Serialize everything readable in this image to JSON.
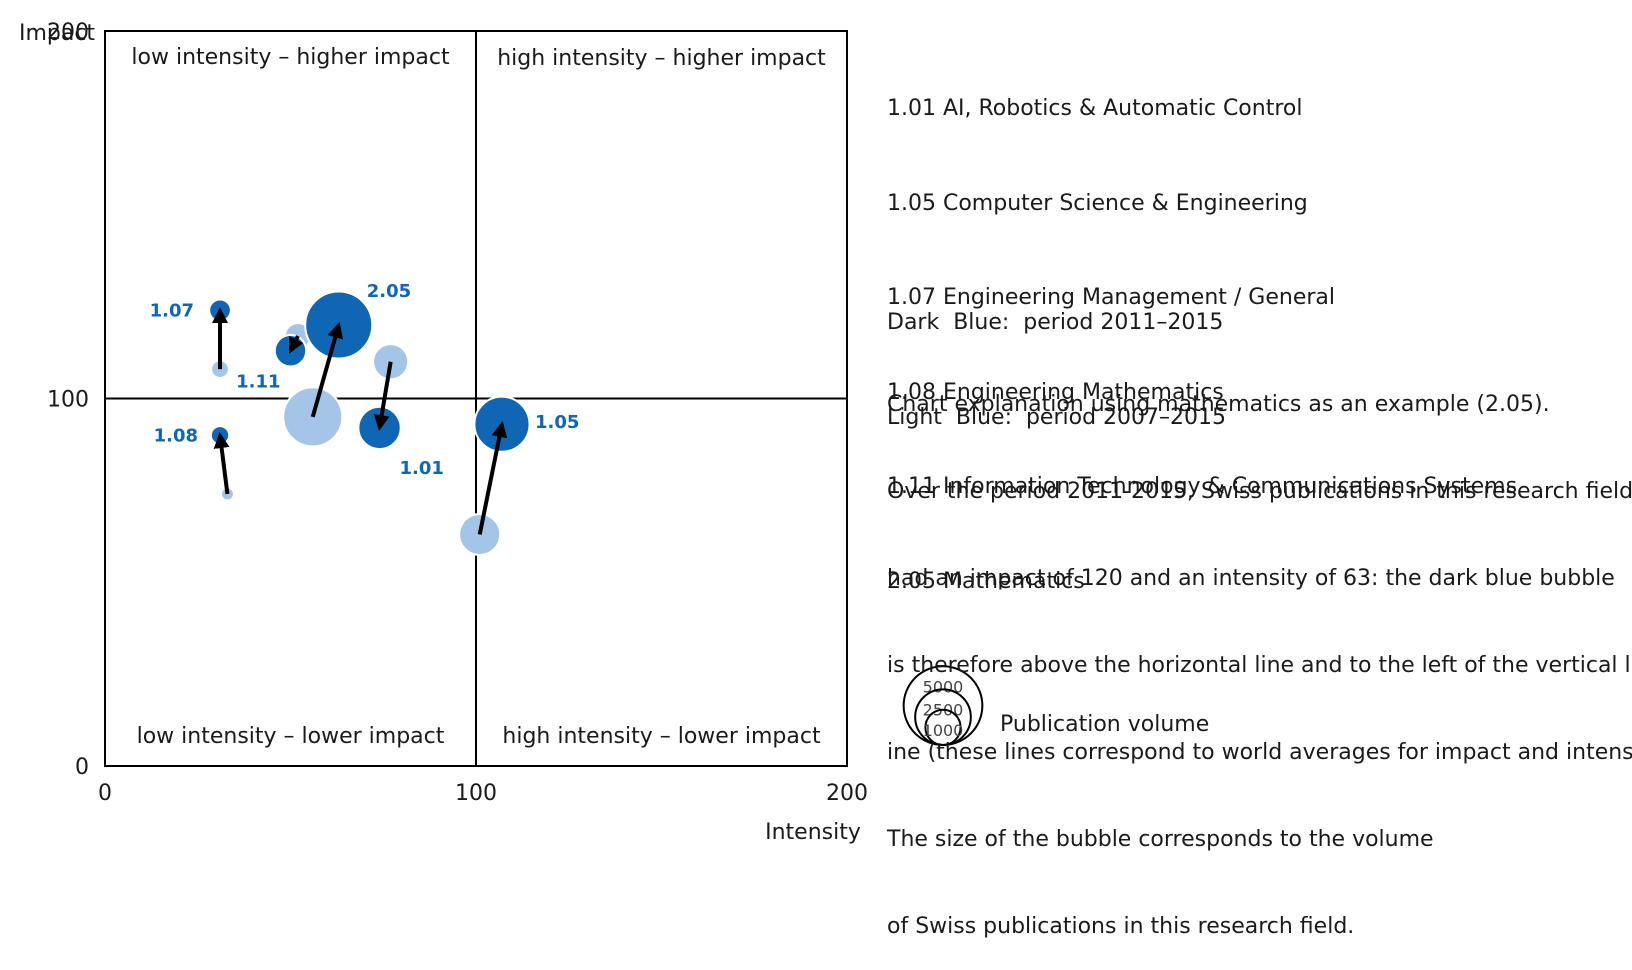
{
  "chart_data": {
    "type": "bubble",
    "xlabel": "Intensity",
    "ylabel": "Impact",
    "xlim": [
      0,
      200
    ],
    "ylim": [
      0,
      200
    ],
    "x_ticks": [
      "0",
      "100",
      "200"
    ],
    "y_ticks": [
      "0",
      "100",
      "200"
    ],
    "reference_lines": {
      "x": 100,
      "y": 100
    },
    "quadrant_labels": {
      "top_left": "low intensity – higher impact",
      "top_right": "high intensity – higher impact",
      "bottom_left": "low intensity – lower impact",
      "bottom_right": "high intensity – lower impact"
    },
    "series": [
      {
        "name": "period 2007–2015",
        "color": "#a4c5e8"
      },
      {
        "name": "period 2011–2015",
        "color": "#0f66b5"
      }
    ],
    "fields": [
      {
        "code": "1.01",
        "prev": {
          "x": 77,
          "y": 110,
          "volume": 1100
        },
        "curr": {
          "x": 74,
          "y": 92,
          "volume": 1600
        }
      },
      {
        "code": "1.05",
        "prev": {
          "x": 101,
          "y": 63,
          "volume": 1500
        },
        "curr": {
          "x": 107,
          "y": 93,
          "volume": 2700
        }
      },
      {
        "code": "1.07",
        "prev": {
          "x": 31,
          "y": 108,
          "volume": 280
        },
        "curr": {
          "x": 31,
          "y": 124,
          "volume": 420
        }
      },
      {
        "code": "1.08",
        "prev": {
          "x": 33,
          "y": 74,
          "volume": 150
        },
        "curr": {
          "x": 31,
          "y": 90,
          "volume": 300
        }
      },
      {
        "code": "1.11",
        "prev": {
          "x": 52,
          "y": 117,
          "volume": 600
        },
        "curr": {
          "x": 50,
          "y": 113,
          "volume": 880
        }
      },
      {
        "code": "2.05",
        "prev": {
          "x": 56,
          "y": 95,
          "volume": 3100
        },
        "curr": {
          "x": 63,
          "y": 120,
          "volume": 4000
        }
      }
    ],
    "size_legend": {
      "title": "Publication volume",
      "values": [
        "5000",
        "2500",
        "1000"
      ],
      "volumes": [
        5000,
        2500,
        1000
      ]
    }
  },
  "legend": {
    "fields": [
      "1.01 AI, Robotics & Automatic Control",
      "1.05 Computer Science & Engineering",
      "1.07 Engineering Management / General",
      "1.08 Engineering Mathematics",
      "1.11 Information Technology & Communications Systems",
      "2.05 Mathematics"
    ],
    "periods": [
      "Dark  Blue:  period 2011–2015",
      "Light  Blue:  period 2007–2015"
    ],
    "explanation": [
      "Chart explanation using mathematics as an example (2.05).",
      "Over the period 2011-2015, Swiss publications in this research field",
      "had an impact of 120 and an intensity of 63: the dark blue bubble",
      "is therefore above the horizontal line and to the left of the vertical l",
      "ine (these lines correspond to world averages for impact and intensity).",
      "The size of the bubble corresponds to the volume",
      "of Swiss publications in this research field."
    ]
  }
}
